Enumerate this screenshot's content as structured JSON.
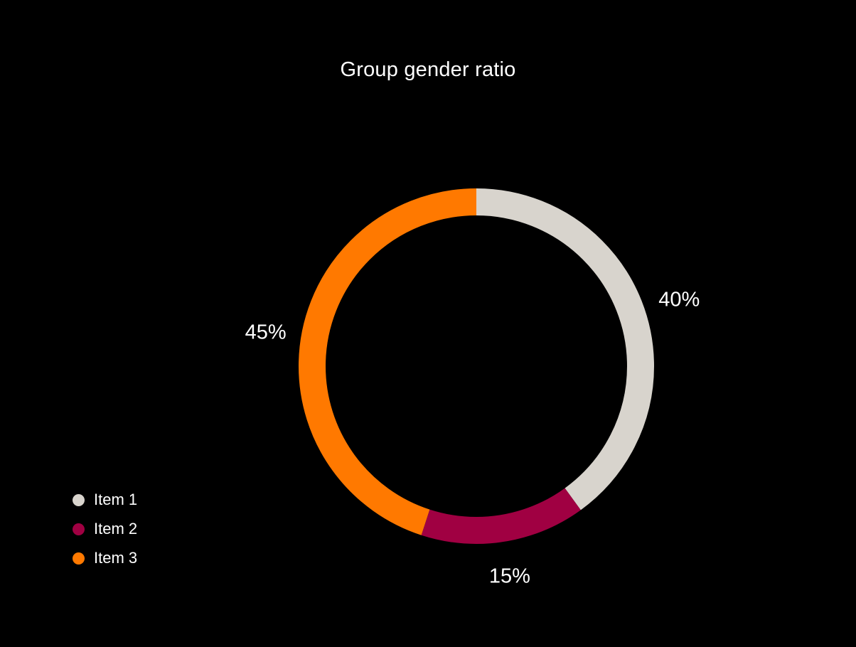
{
  "chart_data": {
    "type": "pie",
    "subtype": "donut",
    "title": "Group gender ratio",
    "categories": [
      "Item 1",
      "Item 2",
      "Item 3"
    ],
    "values": [
      40,
      15,
      45
    ],
    "slices": [
      {
        "name": "Item 1",
        "value": 40,
        "label": "40%",
        "color": "#d8d4cd"
      },
      {
        "name": "Item 2",
        "value": 15,
        "label": "15%",
        "color": "#a00042"
      },
      {
        "name": "Item 3",
        "value": 45,
        "label": "45%",
        "color": "#ff7900"
      }
    ],
    "start_angle_deg": 0,
    "direction": "clockwise",
    "legend_position": "bottom-left",
    "grid": false,
    "background": "#000000",
    "text_color": "#ffffff"
  }
}
